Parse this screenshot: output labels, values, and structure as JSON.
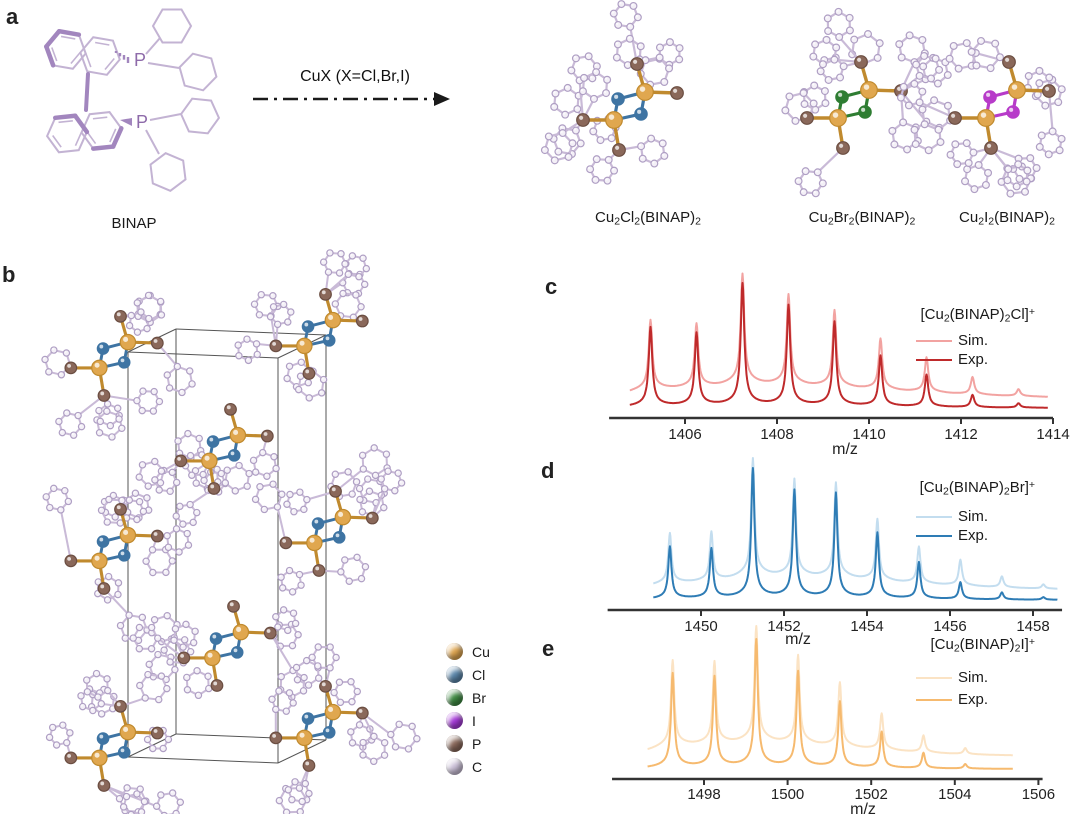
{
  "panels": {
    "a": "a",
    "b": "b",
    "c": "c",
    "d": "d",
    "e": "e"
  },
  "panel_a": {
    "ligand_label": "BINAP",
    "arrow_label": "CuX (X=Cl,Br,I)",
    "products": [
      {
        "name": "Cu2Cl2(BINAP)2",
        "halide": "Cl",
        "halide_color": "#3E74A3",
        "formula": [
          {
            "t": "Cu"
          },
          {
            "t": "2",
            "s": "sub"
          },
          {
            "t": "Cl"
          },
          {
            "t": "2",
            "s": "sub"
          },
          {
            "t": "(BINAP)"
          },
          {
            "t": "2",
            "s": "sub"
          }
        ]
      },
      {
        "name": "Cu2Br2(BINAP)2",
        "halide": "Br",
        "halide_color": "#2E7D32",
        "formula": [
          {
            "t": "Cu"
          },
          {
            "t": "2",
            "s": "sub"
          },
          {
            "t": "Br"
          },
          {
            "t": "2",
            "s": "sub"
          },
          {
            "t": "(BINAP)"
          },
          {
            "t": "2",
            "s": "sub"
          }
        ]
      },
      {
        "name": "Cu2I2(BINAP)2",
        "halide": "I",
        "halide_color": "#B73BC9",
        "formula": [
          {
            "t": "Cu"
          },
          {
            "t": "2",
            "s": "sub"
          },
          {
            "t": "I"
          },
          {
            "t": "2",
            "s": "sub"
          },
          {
            "t": "(BINAP)"
          },
          {
            "t": "2",
            "s": "sub"
          }
        ]
      }
    ]
  },
  "panel_b": {
    "halide_color": "#3E74A3",
    "atom_legend": [
      {
        "label": "Cu",
        "color": "#DFA651"
      },
      {
        "label": "Cl",
        "color": "#5B87AB"
      },
      {
        "label": "Br",
        "color": "#3F8B43"
      },
      {
        "label": "I",
        "color": "#A63BD9"
      },
      {
        "label": "P",
        "color": "#8A695B"
      },
      {
        "label": "C",
        "color": "#CBC0D8"
      }
    ]
  },
  "atom_colors": {
    "Cu": "#E0A74F",
    "P": "#8A685A",
    "C_fill": "#F4F0F7",
    "C_stroke": "#AF9FC4",
    "bond": "#C9BAD7",
    "CuP_bond": "#C08A2E"
  },
  "chart_data": [
    {
      "id": "c",
      "type": "line",
      "panel_letter": "c",
      "xlabel": "m/z",
      "title_formula": [
        {
          "t": "[Cu"
        },
        {
          "t": "2",
          "s": "sub"
        },
        {
          "t": "(BINAP)"
        },
        {
          "t": "2",
          "s": "sub"
        },
        {
          "t": "Cl]"
        },
        {
          "t": "+",
          "s": "sup"
        }
      ],
      "xticks": [
        1406,
        1408,
        1410,
        1412,
        1414
      ],
      "xlim_axis": [
        1404.35,
        1414.0
      ],
      "trace_range": [
        1404.8,
        1413.9
      ],
      "legend_position": "upper right",
      "series": [
        {
          "name": "Sim.",
          "color": "#F2A3A1",
          "x": [
            1405.25,
            1406.25,
            1407.25,
            1408.25,
            1409.25,
            1410.25,
            1411.25,
            1412.25,
            1413.25
          ],
          "y": [
            0.6,
            0.55,
            0.95,
            0.78,
            0.66,
            0.44,
            0.3,
            0.15,
            0.06
          ]
        },
        {
          "name": "Exp.",
          "color": "#BF2A2B",
          "x": [
            1405.25,
            1406.25,
            1407.25,
            1408.25,
            1409.25,
            1410.25,
            1411.25,
            1412.25,
            1413.25
          ],
          "y": [
            0.64,
            0.59,
            1.0,
            0.81,
            0.68,
            0.41,
            0.26,
            0.1,
            0.035
          ]
        }
      ]
    },
    {
      "id": "d",
      "type": "line",
      "panel_letter": "d",
      "xlabel": "m/z",
      "title_formula": [
        {
          "t": "[Cu"
        },
        {
          "t": "2",
          "s": "sub"
        },
        {
          "t": "(BINAP)"
        },
        {
          "t": "2",
          "s": "sub"
        },
        {
          "t": "Br]"
        },
        {
          "t": "+",
          "s": "sup"
        }
      ],
      "xticks": [
        1450,
        1452,
        1454,
        1456,
        1458
      ],
      "xlim_axis": [
        1447.75,
        1458.7
      ],
      "trace_range": [
        1448.85,
        1458.6
      ],
      "legend_position": "upper right",
      "series": [
        {
          "name": "Sim.",
          "color": "#C3DDEF",
          "x": [
            1449.25,
            1450.25,
            1451.25,
            1452.25,
            1453.25,
            1454.25,
            1455.25,
            1456.25,
            1457.25,
            1458.25
          ],
          "y": [
            0.41,
            0.4,
            0.96,
            0.79,
            0.77,
            0.5,
            0.3,
            0.21,
            0.09,
            0.035
          ]
        },
        {
          "name": "Exp.",
          "color": "#2E7CB5",
          "x": [
            1449.25,
            1450.25,
            1451.25,
            1452.25,
            1453.25,
            1454.25,
            1455.25,
            1456.25,
            1457.25,
            1458.25
          ],
          "y": [
            0.4,
            0.38,
            1.0,
            0.82,
            0.8,
            0.5,
            0.28,
            0.13,
            0.055,
            0.02
          ]
        }
      ]
    },
    {
      "id": "e",
      "type": "line",
      "panel_letter": "e",
      "xlabel": "m/z",
      "title_formula": [
        {
          "t": "[Cu"
        },
        {
          "t": "2",
          "s": "sub"
        },
        {
          "t": "(BINAP)"
        },
        {
          "t": "2",
          "s": "sub"
        },
        {
          "t": "I]"
        },
        {
          "t": "+",
          "s": "sup"
        }
      ],
      "xticks": [
        1498,
        1500,
        1502,
        1504,
        1506
      ],
      "xlim_axis": [
        1495.8,
        1506.1
      ],
      "trace_range": [
        1496.65,
        1505.4
      ],
      "legend_position": "upper right",
      "series": [
        {
          "name": "Sim.",
          "color": "#FBE3C4",
          "x": [
            1497.25,
            1498.25,
            1499.25,
            1500.25,
            1501.25,
            1502.25,
            1503.25,
            1504.25
          ],
          "y": [
            0.71,
            0.68,
            0.96,
            0.73,
            0.53,
            0.3,
            0.14,
            0.05
          ]
        },
        {
          "name": "Exp.",
          "color": "#F6BA6F",
          "x": [
            1497.25,
            1498.25,
            1499.25,
            1500.25,
            1501.25,
            1502.25,
            1503.25,
            1504.25
          ],
          "y": [
            0.73,
            0.7,
            1.0,
            0.74,
            0.51,
            0.28,
            0.12,
            0.035
          ]
        }
      ]
    }
  ]
}
